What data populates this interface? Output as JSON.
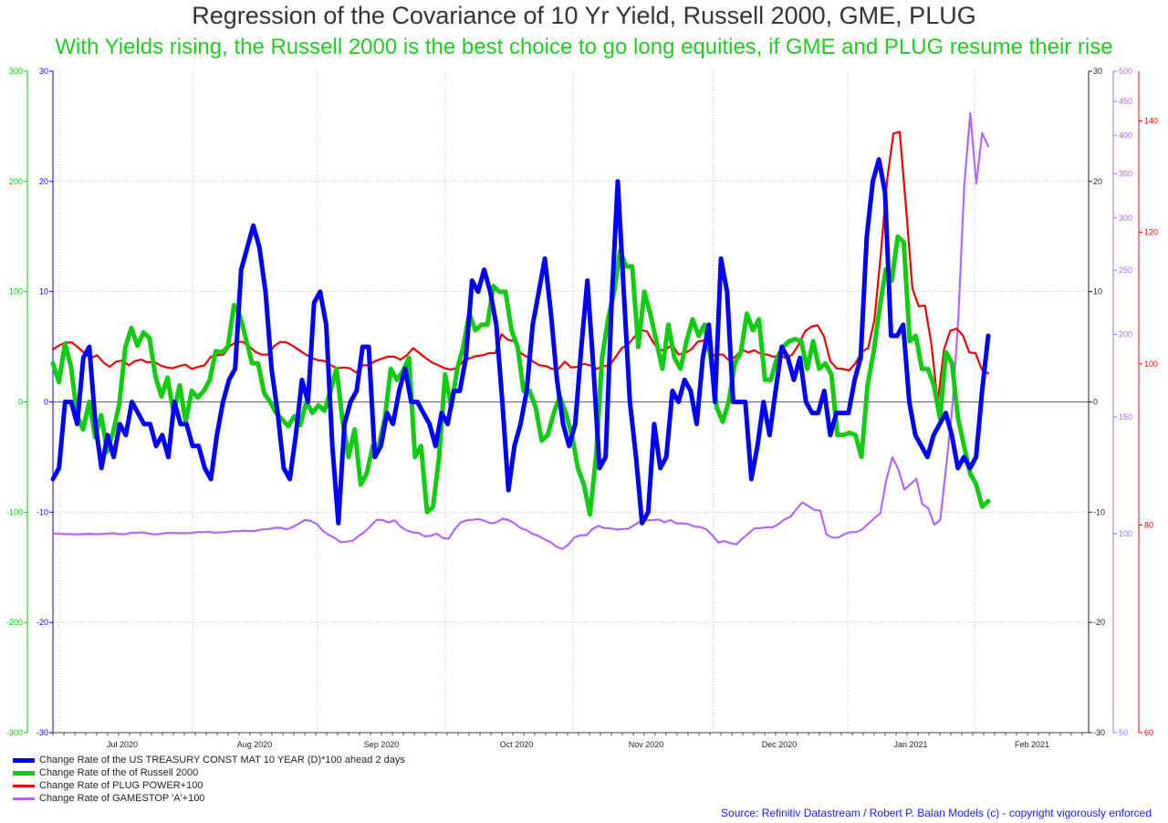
{
  "chart_data": {
    "type": "line",
    "title": "Regression of the Covariance of 10 Yr Yield, Russell 2000, GME, PLUG",
    "subtitle": "With Yields rising, the Russell 2000 is the best choice to go long equities, if GME and PLUG resume their rise",
    "source": "Source: Refinitiv Datastream / Robert P. Balan Models (c) - copyright vigorously enforced",
    "x_labels": [
      "Jul 2020",
      "Aug 2020",
      "Sep 2020",
      "Oct 2020",
      "Nov 2020",
      "Dec 2020",
      "Jan 2021",
      "Feb 2021"
    ],
    "axes": {
      "left_outer": {
        "color": "#00cc00",
        "ticks": [
          "300",
          "200",
          "100",
          "0",
          "-100",
          "-200",
          "-300"
        ],
        "range": [
          -300,
          300
        ]
      },
      "left_inner": {
        "color": "#0000ff",
        "ticks": [
          "30",
          "20",
          "10",
          "0",
          "-10",
          "-20",
          "-30"
        ],
        "range": [
          -30,
          30
        ]
      },
      "right_inner": {
        "color": "#222222",
        "ticks": [
          "30",
          "20",
          "10",
          "0",
          "-10",
          "-20",
          "-30"
        ],
        "range": [
          -30,
          30
        ]
      },
      "right_gme": {
        "color": "#b366ff",
        "ticks": [
          "500",
          "450",
          "400",
          "350",
          "300",
          "250",
          "200",
          "150",
          "100",
          "50"
        ],
        "log": true,
        "range": [
          50,
          500
        ]
      },
      "right_plug": {
        "color": "#ee0000",
        "ticks": [
          "140",
          "120",
          "100",
          "80",
          "60"
        ],
        "log": true,
        "range": [
          60,
          150
        ]
      }
    },
    "series": [
      {
        "name": "Change Rate of the US TREASURY CONST MAT 10 YEAR (D)*100 ahead 2 days",
        "color": "#0000ff",
        "axis": "left_inner",
        "values": [
          -7,
          -6,
          0,
          0,
          -2,
          4,
          5,
          -2,
          -6,
          -3,
          -5,
          -2,
          -3,
          0,
          -1,
          -2,
          -2,
          -4,
          -3,
          -5,
          0,
          -2,
          -2,
          -4,
          -4,
          -6,
          -7,
          -3,
          0,
          2,
          3,
          12,
          14,
          16,
          14,
          10,
          3,
          -1,
          -6,
          -7,
          -3,
          2,
          0,
          9,
          10,
          7,
          -4,
          -11,
          -2,
          0,
          1,
          5,
          5,
          -5,
          -4,
          -1,
          -2,
          1,
          3,
          0,
          0,
          -1,
          -2,
          -4,
          -1,
          -2,
          1,
          1,
          4,
          11,
          10,
          12,
          10,
          7,
          0,
          -8,
          -4,
          -2,
          1,
          7,
          10,
          13,
          8,
          2,
          -2,
          -4,
          -2,
          5,
          11,
          3,
          -6,
          -5,
          9,
          20,
          10,
          0,
          -5,
          -11,
          -10,
          -2,
          -6,
          -5,
          1,
          0,
          2,
          1,
          -2,
          4,
          7,
          0,
          13,
          10,
          0,
          0,
          0,
          -7,
          -4,
          0,
          -3,
          1,
          5,
          4,
          2,
          4,
          0,
          -1,
          -1,
          1,
          -3,
          -1,
          -1,
          -1,
          2,
          4,
          15,
          20,
          22,
          19,
          6,
          6,
          7,
          0,
          -3,
          -4,
          -5,
          -3,
          -2,
          -1,
          -3,
          -6,
          -5,
          -6,
          -5,
          1,
          6
        ]
      },
      {
        "name": "Change Rate of the of Russell 2000",
        "color": "#11cc11",
        "axis": "left_outer",
        "values": [
          35,
          18,
          53,
          32,
          -12,
          -25,
          0,
          -32,
          -12,
          -45,
          -27,
          -2,
          50,
          67,
          51,
          63,
          58,
          23,
          5,
          22,
          -10,
          15,
          -18,
          10,
          4,
          10,
          20,
          46,
          45,
          50,
          88,
          78,
          57,
          35,
          35,
          8,
          0,
          -10,
          -16,
          -22,
          -13,
          -21,
          0,
          -10,
          -3,
          -8,
          10,
          30,
          -17,
          -50,
          -25,
          -75,
          -65,
          -40,
          -40,
          -15,
          30,
          20,
          28,
          40,
          -50,
          -40,
          -100,
          -95,
          -50,
          25,
          -5,
          30,
          50,
          80,
          65,
          70,
          70,
          105,
          100,
          100,
          65,
          50,
          10,
          10,
          -5,
          -35,
          -30,
          -10,
          5,
          -10,
          -30,
          -60,
          -75,
          -102,
          -50,
          40,
          75,
          100,
          137,
          123,
          123,
          50,
          100,
          80,
          55,
          30,
          70,
          40,
          30,
          55,
          75,
          60,
          70,
          40,
          -5,
          -18,
          0,
          35,
          45,
          80,
          65,
          75,
          20,
          20,
          40,
          50,
          55,
          57,
          55,
          30,
          55,
          30,
          35,
          25,
          -30,
          -30,
          -28,
          -30,
          -50,
          15,
          45,
          85,
          120,
          110,
          150,
          145,
          55,
          60,
          30,
          30,
          15,
          -15,
          45,
          35,
          -15,
          -40,
          -65,
          -75,
          -95,
          -90
        ]
      },
      {
        "name": "Change Rate of PLUG POWER+100",
        "color": "#ee0000",
        "axis": "right_plug",
        "values": [
          102,
          102.6,
          103,
          103,
          102.3,
          101.5,
          100.8,
          101.2,
          100.2,
          99.6,
          100.3,
          100.5,
          99.8,
          100.4,
          100.6,
          100.2,
          100.3,
          99.8,
          99.5,
          99.4,
          99.7,
          99.9,
          99.3,
          99.6,
          99.8,
          101,
          101.2,
          101.3,
          102.5,
          103.1,
          103.1,
          102.5,
          101.7,
          101.3,
          101.3,
          102.5,
          103.1,
          103,
          102.5,
          101.9,
          101.3,
          100.8,
          100.5,
          100.4,
          99.8,
          99.4,
          99.5,
          99.4,
          98.8,
          99.8,
          99.8,
          100.4,
          100.7,
          101,
          101,
          100.6,
          101.2,
          102.2,
          101.5,
          100.8,
          100.2,
          99.8,
          99.4,
          99.2,
          99.5,
          100.4,
          100.8,
          101.1,
          101.2,
          101.5,
          101.5,
          104.2,
          103.4,
          103.2,
          101.5,
          101,
          100.3,
          99.8,
          99.7,
          99.3,
          99.3,
          100.3,
          99.5,
          99.6,
          100,
          99.8,
          99.3,
          99.7,
          99.7,
          100.9,
          102.2,
          102.7,
          103.8,
          104.8,
          104.6,
          103,
          101.9,
          102,
          102.7,
          101.3,
          101.5,
          102,
          103.1,
          103.3,
          101,
          101.3,
          101.3,
          100.5,
          101,
          102,
          101.6,
          101.9,
          101.4,
          101.3,
          101,
          101.2,
          100.8,
          101.3,
          102.7,
          104.6,
          105.3,
          105.5,
          103.9,
          100.4,
          99.4,
          99.3,
          99.1,
          100.1,
          101.7,
          102.2,
          106.3,
          116.5,
          129,
          137.6,
          137.9,
          124,
          111,
          108.3,
          108.4,
          102.8,
          94.8,
          102,
          104.7,
          105,
          104,
          101.6,
          101.5,
          99.2,
          98.7
        ]
      },
      {
        "name": "Change Rate of GAMESTOP 'A'+100",
        "color": "#b366ff",
        "axis": "right_gme",
        "values": [
          100,
          100,
          99.8,
          99.8,
          99.7,
          99.8,
          99.9,
          99.8,
          99.8,
          100,
          100.1,
          99.8,
          99.8,
          100.2,
          100.3,
          100.4,
          100,
          99.7,
          99.9,
          100.2,
          100.2,
          100.1,
          100.1,
          100.2,
          100.5,
          100.5,
          100.6,
          100.3,
          100.4,
          100.5,
          100.8,
          100.8,
          101,
          100.8,
          101,
          101.5,
          101.6,
          102,
          102,
          101.5,
          102.3,
          103.5,
          104.8,
          104.5,
          103.4,
          101,
          99.5,
          98.5,
          97,
          97.2,
          97.5,
          99.2,
          100.6,
          102.7,
          104.9,
          104.8,
          103.9,
          104.7,
          102.4,
          101.1,
          100.4,
          100.2,
          99,
          99.2,
          100,
          98.5,
          98.2,
          101.5,
          103.9,
          104.7,
          104.9,
          105.2,
          104.5,
          103.6,
          104,
          105.3,
          104.8,
          103.6,
          101.9,
          101.2,
          99.9,
          99.2,
          98,
          97,
          95.5,
          94.8,
          96.3,
          98.7,
          99.4,
          99.4,
          101.6,
          102.7,
          101.9,
          101.8,
          101.4,
          101.6,
          101.7,
          103,
          104.4,
          104.7,
          104.8,
          105,
          104,
          104.8,
          103.6,
          103.6,
          103.3,
          102.5,
          102.3,
          101.5,
          99.3,
          96.9,
          97.4,
          96.7,
          96.3,
          98.3,
          100,
          101.8,
          101.9,
          102.2,
          102.2,
          103.3,
          105,
          106,
          108.8,
          111.5,
          110,
          108.6,
          108.3,
          99.7,
          98.6,
          98.6,
          99.8,
          100.5,
          100.5,
          101.5,
          103.5,
          105.5,
          107.3,
          120.6,
          130.3,
          125.2,
          116.6,
          118.6,
          121,
          110.8,
          109.2,
          103.1,
          104.8,
          126.5,
          155,
          210,
          335,
          432,
          338,
          403,
          385
        ]
      }
    ]
  }
}
